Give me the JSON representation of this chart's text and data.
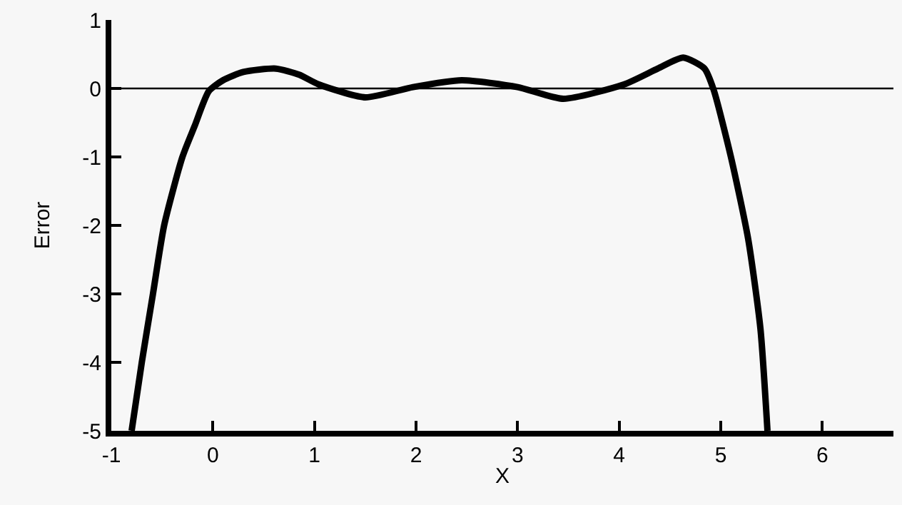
{
  "chart_data": {
    "type": "line",
    "xlabel": "X",
    "ylabel": "Error",
    "x": [
      -0.8,
      -0.7,
      -0.59,
      -0.48,
      -0.3,
      -0.18,
      -0.04,
      0.1,
      0.3,
      0.62,
      0.85,
      1.04,
      1.5,
      1.97,
      2.45,
      3.0,
      3.45,
      4.05,
      4.38,
      4.63,
      4.84,
      4.93,
      5.1,
      5.27,
      5.39,
      5.46
    ],
    "series": [
      {
        "color": "#000000",
        "values": [
          -5,
          -4,
          -3,
          -2,
          -1,
          -0.55,
          -0.04,
          0.12,
          0.24,
          0.29,
          0.2,
          0.06,
          -0.13,
          0.02,
          0.12,
          0.02,
          -0.15,
          0.06,
          0.29,
          0.45,
          0.29,
          -0.02,
          -1,
          -2.2,
          -3.5,
          -5
        ]
      }
    ],
    "xlim": [
      -1,
      6.7
    ],
    "ylim": [
      -5,
      1
    ],
    "xticks": [
      -1,
      0,
      1,
      2,
      3,
      4,
      5,
      6
    ],
    "yticks": [
      -5,
      -4,
      -3,
      -2,
      -1,
      0,
      1
    ],
    "ref_lines": [
      {
        "axis": "y",
        "value": 0,
        "color": "#000000"
      }
    ],
    "grid": false,
    "legend": false,
    "marker": "none",
    "line_style": "solid"
  }
}
